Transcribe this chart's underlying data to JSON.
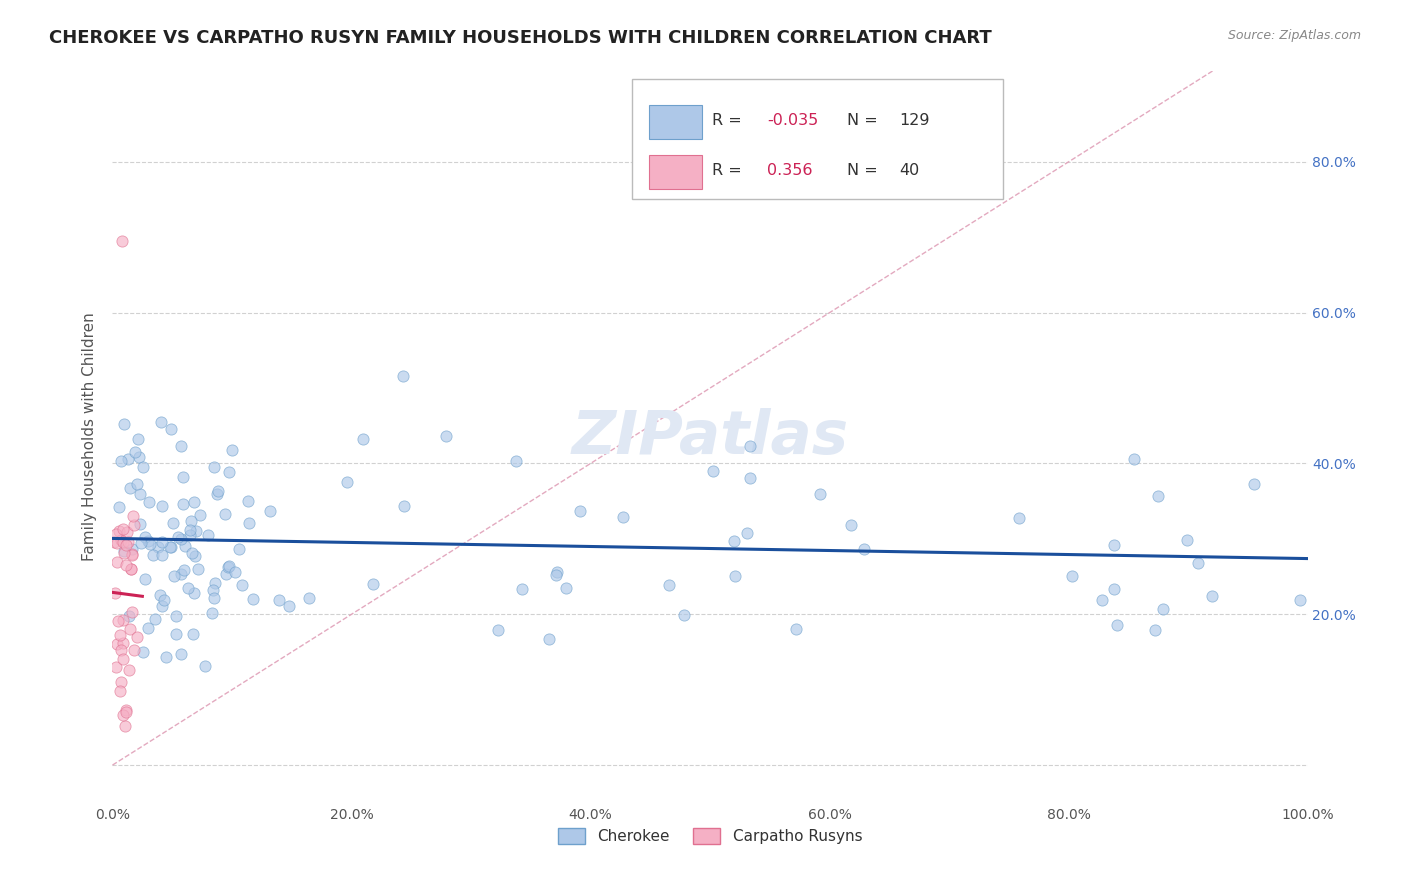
{
  "title": "CHEROKEE VS CARPATHO RUSYN FAMILY HOUSEHOLDS WITH CHILDREN CORRELATION CHART",
  "source": "Source: ZipAtlas.com",
  "ylabel": "Family Households with Children",
  "xlim": [
    0.0,
    1.0
  ],
  "ylim": [
    -0.05,
    0.92
  ],
  "xtick_vals": [
    0.0,
    0.2,
    0.4,
    0.6,
    0.8,
    1.0
  ],
  "ytick_vals": [
    0.0,
    0.2,
    0.4,
    0.6,
    0.8
  ],
  "xtick_labels": [
    "0.0%",
    "20.0%",
    "40.0%",
    "60.0%",
    "80.0%",
    "100.0%"
  ],
  "ytick_labels_right": [
    "",
    "20.0%",
    "40.0%",
    "60.0%",
    "80.0%"
  ],
  "cherokee_R": -0.035,
  "cherokee_N": 129,
  "rusyn_R": 0.356,
  "rusyn_N": 40,
  "cherokee_scatter_color": "#aec8e8",
  "cherokee_edge_color": "#6ea0cc",
  "cherokee_line_color": "#1a4f9c",
  "rusyn_scatter_color": "#f5b0c5",
  "rusyn_edge_color": "#e07090",
  "rusyn_line_color": "#cc2255",
  "diag_line_color": "#e0a0b8",
  "background_color": "#ffffff",
  "grid_color": "#cccccc",
  "title_fontsize": 13,
  "axis_label_fontsize": 11,
  "tick_fontsize": 10,
  "watermark_color": "#e0e8f4",
  "legend_R_color": "#cc2255"
}
